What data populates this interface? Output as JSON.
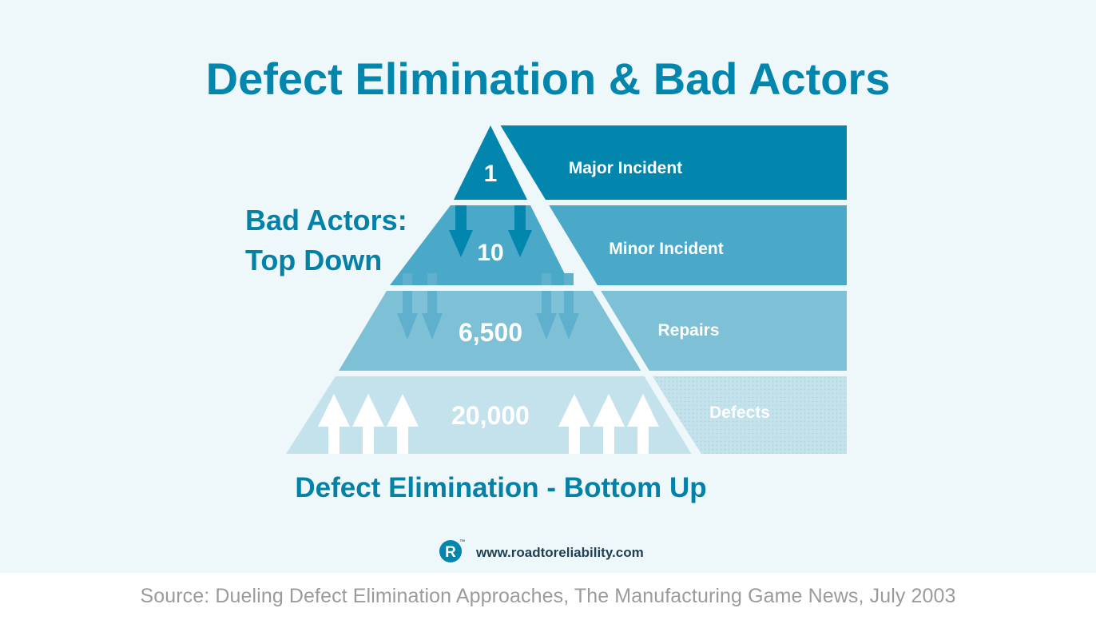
{
  "title": "Defect Elimination & Bad Actors",
  "levels": [
    {
      "value": "1",
      "label": "Major Incident",
      "color": "#0386ae"
    },
    {
      "value": "10",
      "label": "Minor Incident",
      "color": "#4aa9c8"
    },
    {
      "value": "6,500",
      "label": "Repairs",
      "color": "#7ec1d7"
    },
    {
      "value": "20,000",
      "label": "Defects",
      "color": "#c4e2ec"
    }
  ],
  "left_annotation": {
    "line1": "Bad Actors:",
    "line2": "Top Down"
  },
  "bottom_annotation": "Defect Elimination - Bottom Up",
  "brand": {
    "logo_letter": "R",
    "logo_mark": "™",
    "url": "www.roadtoreliability.com"
  },
  "source": "Source: Dueling Defect Elimination Approaches, The Manufacturing Game News, July 2003",
  "colors": {
    "title": "#0386ae",
    "annotation": "#0381a7",
    "brand_text": "#1f3f53",
    "gap": "#eef7fa"
  }
}
